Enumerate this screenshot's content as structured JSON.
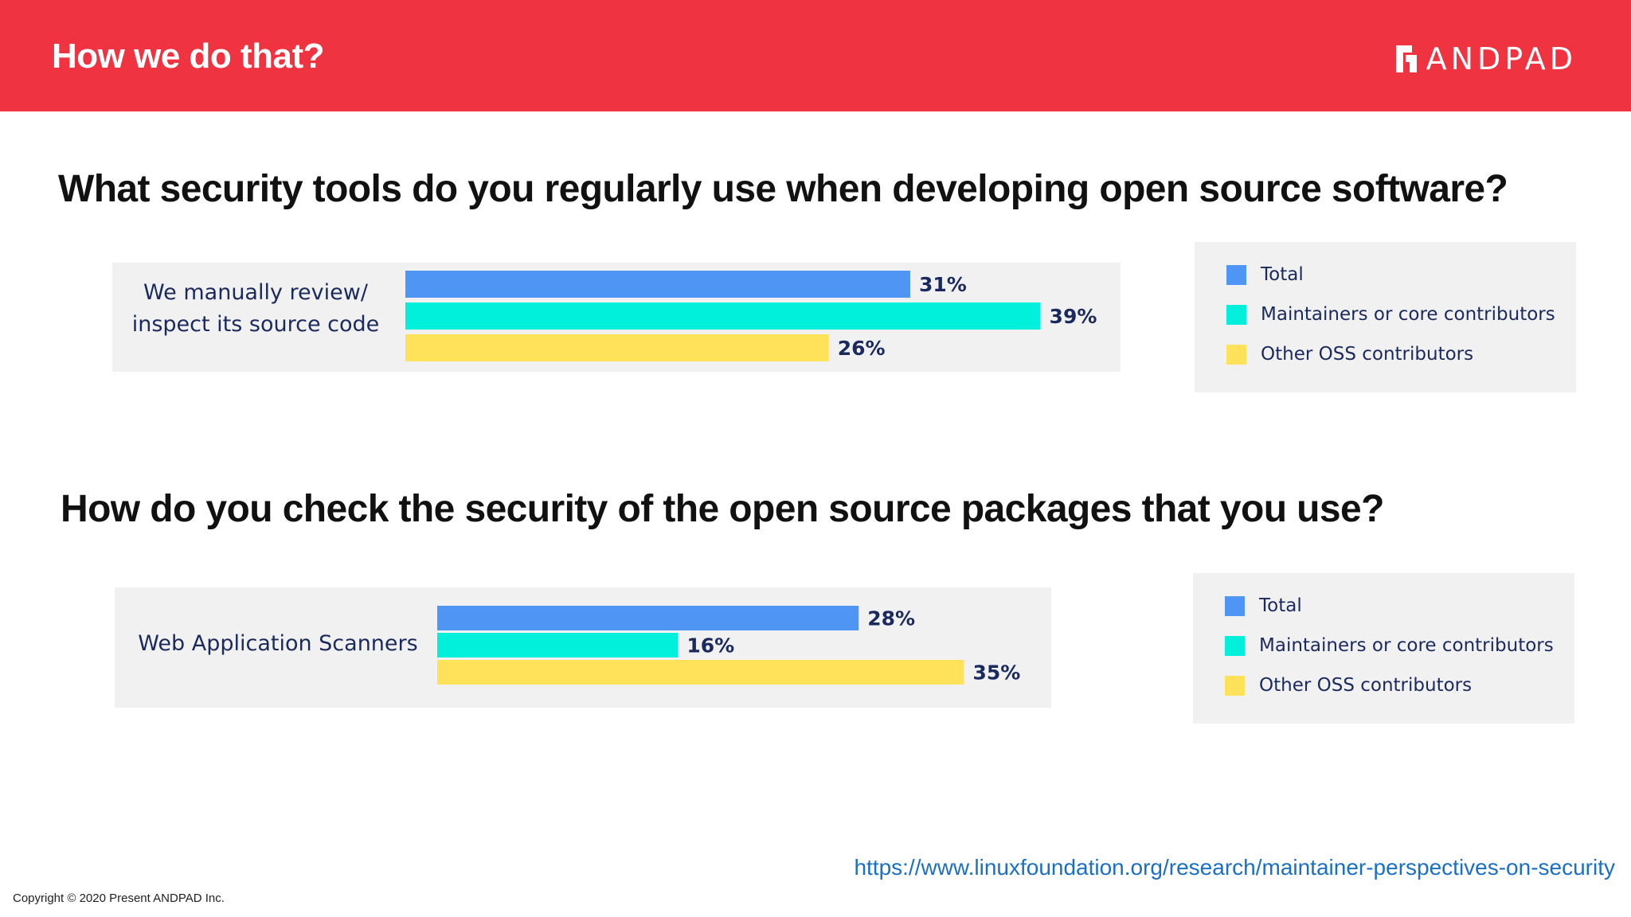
{
  "header": {
    "title": "How we do that?",
    "logo_text": "ANDPAD"
  },
  "colors": {
    "total": "#4f95f4",
    "maintainers": "#00f0dc",
    "other": "#ffe15a",
    "header_bg": "#ef3340"
  },
  "legend_labels": [
    "Total",
    "Maintainers or core contributors",
    "Other OSS contributors"
  ],
  "chart_data": [
    {
      "type": "bar",
      "orientation": "horizontal",
      "title": "What security tools do you regularly use when developing open source software?",
      "categories": [
        "We manually review/ inspect its source code"
      ],
      "category_lines": [
        "We manually review/",
        "inspect its source code"
      ],
      "series": [
        {
          "name": "Total",
          "values": [
            31
          ],
          "label": "31%"
        },
        {
          "name": "Maintainers or core contributors",
          "values": [
            39
          ],
          "label": "39%"
        },
        {
          "name": "Other OSS contributors",
          "values": [
            26
          ],
          "label": "26%"
        }
      ],
      "unit": "%",
      "legend": "right"
    },
    {
      "type": "bar",
      "orientation": "horizontal",
      "title": "How do you check the security of the open source packages that you use?",
      "categories": [
        "Web Application Scanners"
      ],
      "category_lines": [
        "Web Application Scanners"
      ],
      "series": [
        {
          "name": "Total",
          "values": [
            28
          ],
          "label": "28%"
        },
        {
          "name": "Maintainers or core contributors",
          "values": [
            16
          ],
          "label": "16%"
        },
        {
          "name": "Other OSS contributors",
          "values": [
            35
          ],
          "label": "35%"
        }
      ],
      "unit": "%",
      "legend": "right"
    }
  ],
  "footer": {
    "source_url": "https://www.linuxfoundation.org/research/maintainer-perspectives-on-security",
    "copyright": "Copyright © 2020 Present ANDPAD Inc."
  }
}
